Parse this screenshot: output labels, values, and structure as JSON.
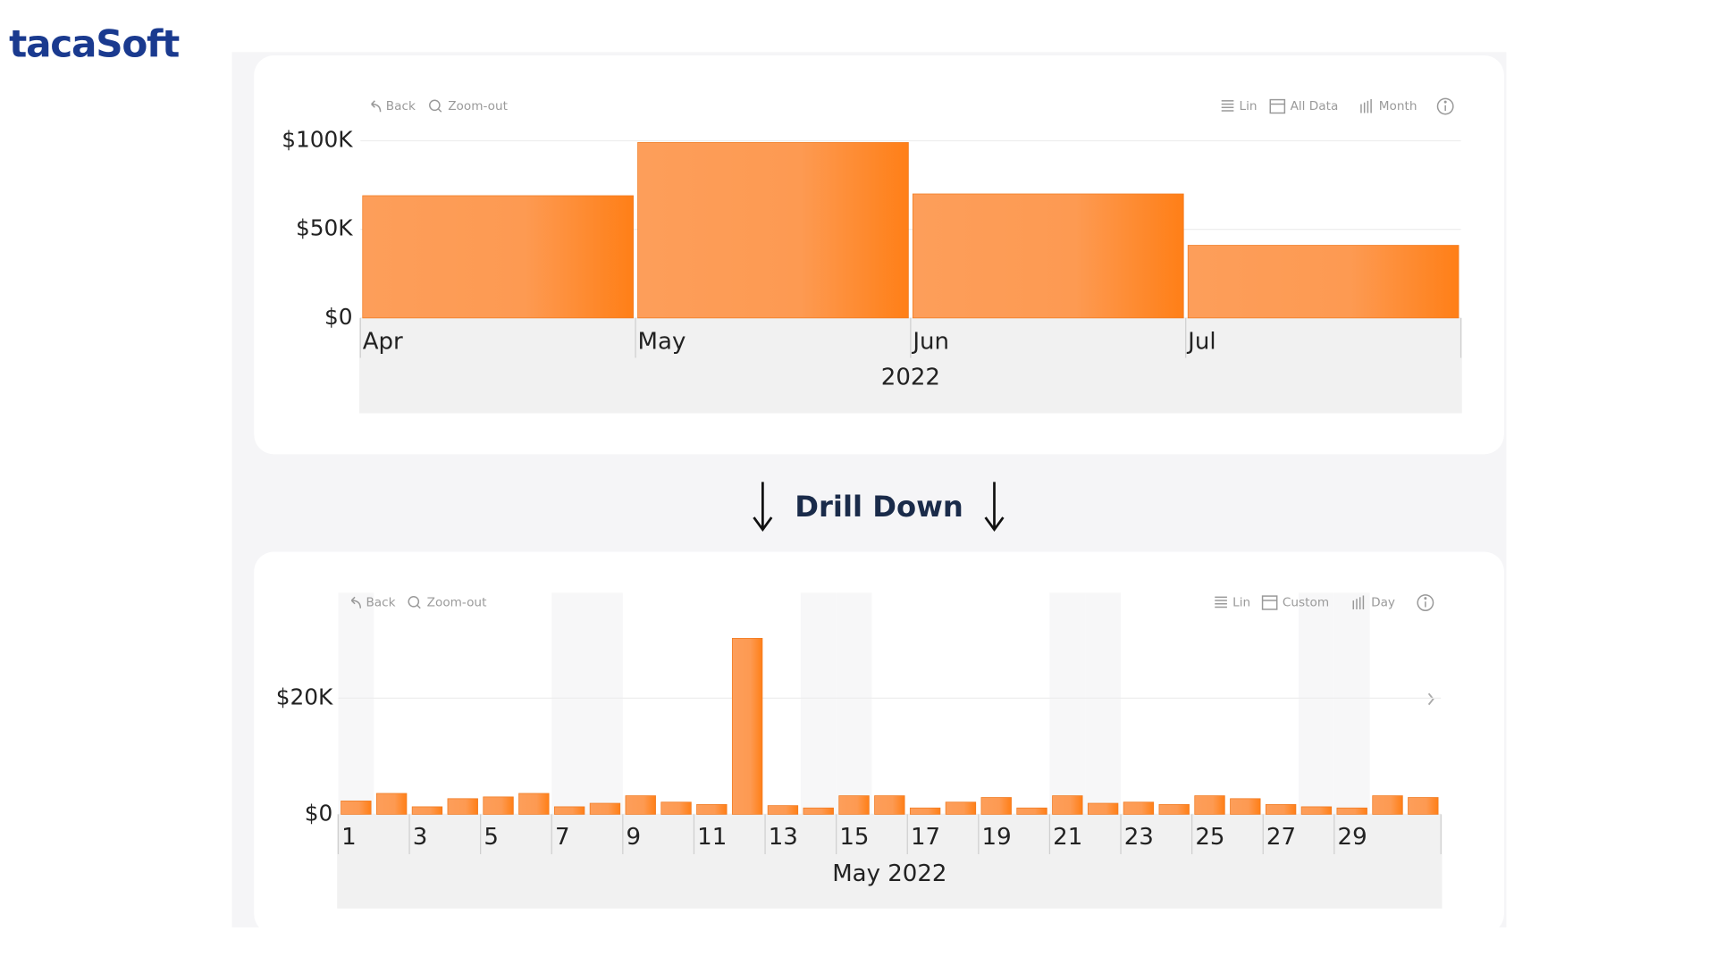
{
  "logo": "tacaSoft",
  "caption": "Drill Down",
  "chart_data": [
    {
      "type": "bar",
      "title": null,
      "x_group_label": "2022",
      "toolbar": [
        "Back",
        "Zoom-out",
        "Lin",
        "All Data",
        "Month"
      ],
      "categories": [
        "Apr",
        "May",
        "Jun",
        "Jul"
      ],
      "values": [
        69000,
        99000,
        70000,
        41000
      ],
      "color": "#ff7f17",
      "ylim": [
        0,
        100000
      ],
      "yticks": [
        {
          "value": 0,
          "label": "$0"
        },
        {
          "value": 50000,
          "label": "$50K"
        },
        {
          "value": 100000,
          "label": "$100K"
        }
      ],
      "grid": true
    },
    {
      "type": "bar",
      "title": null,
      "x_group_label": "May 2022",
      "toolbar": [
        "Back",
        "Zoom-out",
        "Lin",
        "Custom",
        "Day"
      ],
      "categories": [
        "1",
        null,
        "3",
        null,
        "5",
        null,
        "7",
        null,
        "9",
        null,
        "11",
        null,
        "13",
        null,
        "15",
        null,
        "17",
        null,
        "19",
        null,
        "21",
        null,
        "23",
        null,
        "25",
        null,
        "27",
        null,
        "29",
        null,
        null
      ],
      "values": [
        2300,
        3600,
        1300,
        2700,
        3000,
        3600,
        1300,
        1900,
        3200,
        2100,
        1700,
        30300,
        1500,
        1100,
        3200,
        3200,
        1100,
        2100,
        2900,
        1100,
        3200,
        1900,
        2100,
        1700,
        3200,
        2700,
        1700,
        1300,
        1100,
        3200,
        2900
      ],
      "color": "#ff7f17",
      "ylim": [
        0,
        37000
      ],
      "yticks": [
        {
          "value": 0,
          "label": "$0"
        },
        {
          "value": 20000,
          "label": "$20K"
        }
      ],
      "grid": true
    }
  ]
}
